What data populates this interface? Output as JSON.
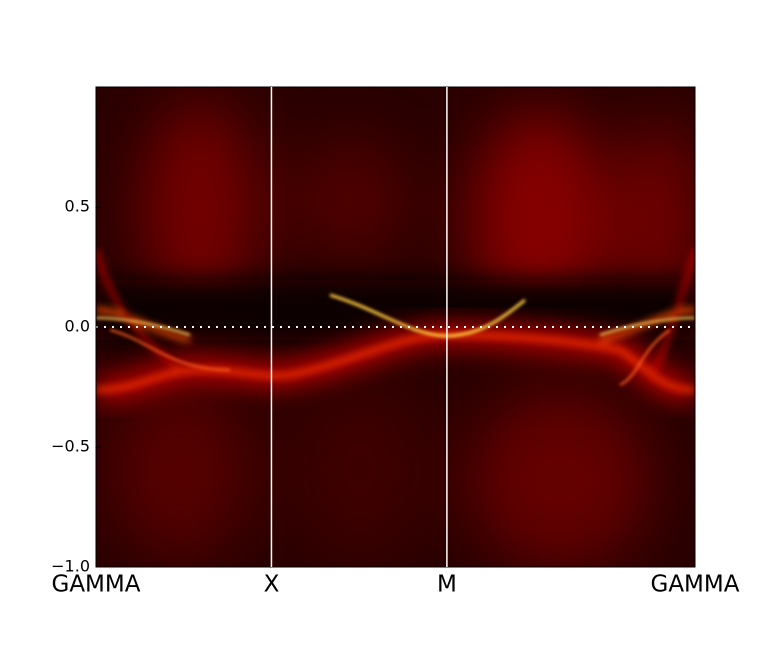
{
  "chart_data": {
    "type": "heatmap",
    "xlim": [
      0,
      3.414
    ],
    "xticks": [
      {
        "value": 0,
        "label": "GAMMA"
      },
      {
        "value": 1,
        "label": "X"
      },
      {
        "value": 2,
        "label": "M"
      },
      {
        "value": 3.414,
        "label": "GAMMA"
      }
    ],
    "ylim": [
      -1.0,
      1.0
    ],
    "yticks": [
      {
        "value": 0.5,
        "label": "0.5"
      },
      {
        "value": 0.0,
        "label": "0.0"
      },
      {
        "value": -0.5,
        "label": "−0.5"
      },
      {
        "value": -1.0,
        "label": "−1.0"
      }
    ]
  }
}
